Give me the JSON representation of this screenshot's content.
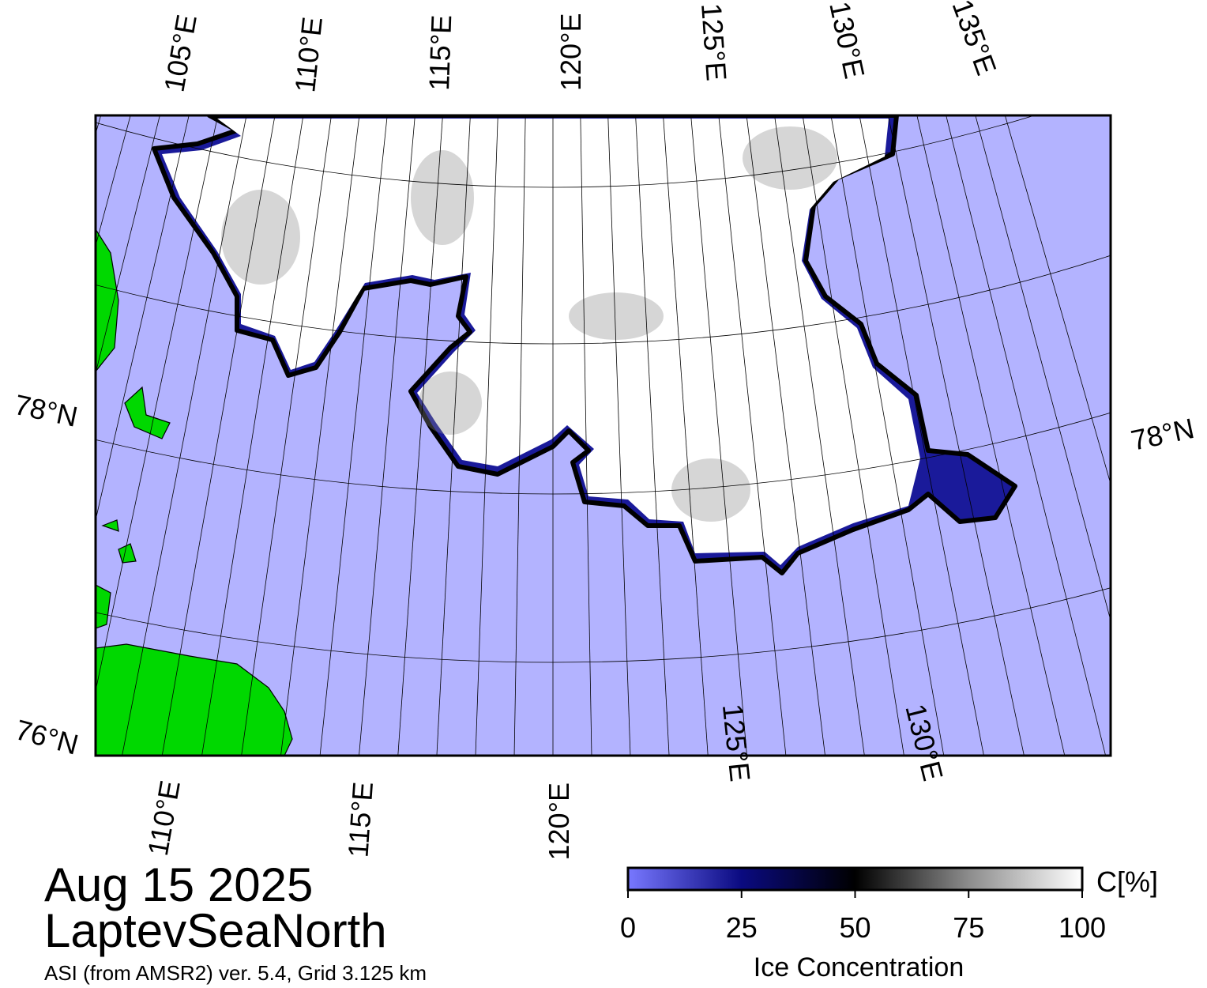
{
  "map": {
    "top_labels": [
      "105°E",
      "110°E",
      "115°E",
      "120°E",
      "125°E",
      "130°E",
      "135°E"
    ],
    "bottom_labels": [
      "110°E",
      "115°E",
      "120°E",
      "125°E",
      "130°E"
    ],
    "left_labels": [
      "78°N",
      "76°N"
    ],
    "right_labels": [
      "78°N"
    ]
  },
  "date": "Aug 15 2025",
  "region": "LaptevSeaNorth",
  "source": "ASI (from AMSR2) ver. 5.4,  Grid 3.125 km",
  "colorbar": {
    "lim": [
      0,
      100
    ],
    "ticks": [
      0,
      25,
      50,
      75,
      100
    ],
    "unit_label": "C[%]",
    "title": "Ice Concentration"
  }
}
